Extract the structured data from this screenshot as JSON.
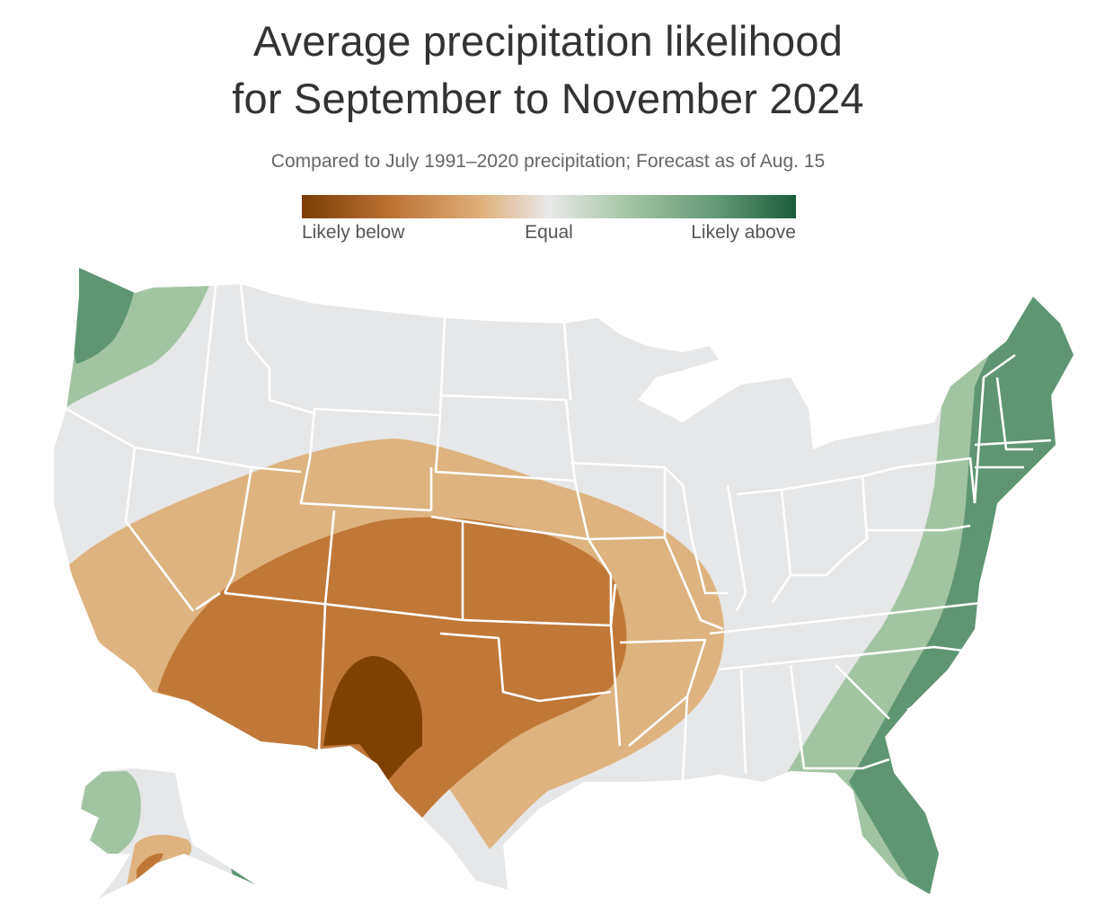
{
  "header": {
    "title_line1": "Average precipitation likelihood",
    "title_line2": "for September to November 2024",
    "subtitle": "Compared to July 1991–2020 precipitation; Forecast as of Aug. 15"
  },
  "legend": {
    "label_below": "Likely below",
    "label_equal": "Equal",
    "label_above": "Likely above",
    "colors": [
      "#7a3d03",
      "#c1793a",
      "#dfb37f",
      "#e6e7e8",
      "#a3c4a3",
      "#5e9673",
      "#1b5c3a"
    ]
  },
  "colors": {
    "land": "#e6e7e8",
    "border": "#ffffff",
    "likely_below_strong": "#7f4100",
    "likely_below_medium": "#c07838",
    "likely_below_light": "#dfb37f",
    "likely_above_light": "#a3c4a3",
    "likely_above_medium": "#5e9673"
  }
}
